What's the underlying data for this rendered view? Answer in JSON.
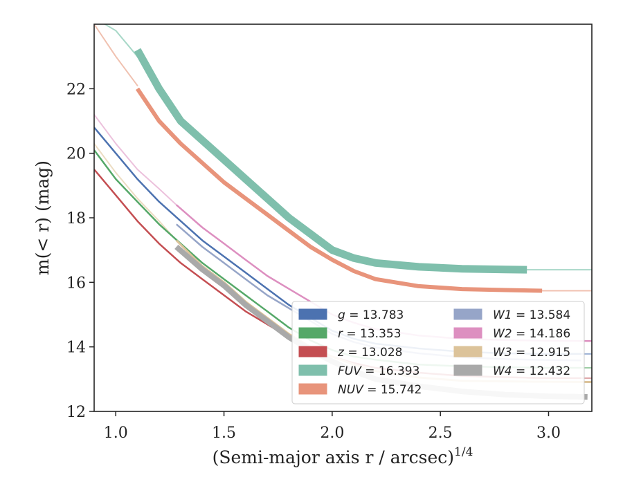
{
  "chart_data": {
    "type": "line",
    "xlabel": "(Semi-major axis r / arcsec)",
    "xlabel_sup": "1/4",
    "ylabel": "m(< r) (mag)",
    "xlim": [
      0.9,
      3.2
    ],
    "ylim": [
      24.0,
      12.0
    ],
    "y_inverted": true,
    "grid": false,
    "legend_placement": "lower-right",
    "xticks": [
      1.0,
      1.5,
      2.0,
      2.5,
      3.0
    ],
    "xtick_labels": [
      "1.0",
      "1.5",
      "2.0",
      "2.5",
      "3.0"
    ],
    "yticks": [
      12,
      14,
      16,
      18,
      20,
      22
    ],
    "ytick_labels": [
      "12",
      "14",
      "16",
      "18",
      "20",
      "22"
    ],
    "series": [
      {
        "name": "g = 13.783",
        "label_var": "g",
        "label_val": "= 13.783",
        "color": "#4c72b0",
        "width": 2.5,
        "x": [
          0.9,
          1.0,
          1.1,
          1.2,
          1.3,
          1.4,
          1.5,
          1.6,
          1.7,
          1.8,
          1.9,
          2.0,
          2.1,
          2.2,
          2.4,
          2.6,
          2.8,
          3.0,
          3.15
        ],
        "y": [
          20.8,
          20.0,
          19.2,
          18.5,
          17.9,
          17.3,
          16.8,
          16.3,
          15.8,
          15.3,
          14.9,
          14.5,
          14.25,
          14.1,
          13.95,
          13.85,
          13.8,
          13.78,
          13.78
        ]
      },
      {
        "name": "r = 13.353",
        "label_var": "r",
        "label_val": "= 13.353",
        "color": "#55a868",
        "width": 2.5,
        "x": [
          0.9,
          1.0,
          1.1,
          1.2,
          1.3,
          1.4,
          1.5,
          1.6,
          1.7,
          1.8,
          1.9,
          2.0,
          2.1,
          2.2,
          2.4,
          2.6,
          2.8,
          3.0,
          3.15
        ],
        "y": [
          20.1,
          19.2,
          18.5,
          17.8,
          17.2,
          16.6,
          16.1,
          15.6,
          15.1,
          14.6,
          14.2,
          13.9,
          13.7,
          13.6,
          13.45,
          13.4,
          13.37,
          13.35,
          13.35
        ]
      },
      {
        "name": "z = 13.028",
        "label_var": "z",
        "label_val": "= 13.028",
        "color": "#c44e52",
        "width": 2.5,
        "x": [
          0.9,
          1.0,
          1.1,
          1.2,
          1.3,
          1.4,
          1.5,
          1.6,
          1.7,
          1.8,
          1.9,
          2.0,
          2.1,
          2.2,
          2.4,
          2.6,
          2.8,
          3.0,
          3.15
        ],
        "y": [
          19.5,
          18.7,
          17.9,
          17.2,
          16.6,
          16.1,
          15.6,
          15.1,
          14.7,
          14.3,
          14.0,
          13.7,
          13.5,
          13.35,
          13.2,
          13.1,
          13.06,
          13.03,
          13.03
        ]
      },
      {
        "name": "FUV = 16.393",
        "label_var": "FUV",
        "label_val": "= 16.393",
        "color": "#7fbfac",
        "width": 11,
        "x": [
          1.1,
          1.2,
          1.3,
          1.4,
          1.5,
          1.6,
          1.7,
          1.8,
          1.9,
          2.0,
          2.1,
          2.2,
          2.4,
          2.6,
          2.8,
          2.9
        ],
        "y": [
          23.2,
          22.0,
          21.0,
          20.4,
          19.8,
          19.2,
          18.6,
          18.0,
          17.5,
          17.0,
          16.75,
          16.6,
          16.48,
          16.42,
          16.4,
          16.39
        ]
      },
      {
        "name": "NUV = 15.742",
        "label_var": "NUV",
        "label_val": "= 15.742",
        "color": "#e8947b",
        "width": 6,
        "x": [
          1.1,
          1.2,
          1.3,
          1.4,
          1.5,
          1.6,
          1.7,
          1.8,
          1.9,
          2.0,
          2.1,
          2.2,
          2.4,
          2.6,
          2.8,
          2.97
        ],
        "y": [
          22.0,
          21.0,
          20.3,
          19.7,
          19.1,
          18.6,
          18.1,
          17.6,
          17.1,
          16.7,
          16.35,
          16.1,
          15.88,
          15.79,
          15.76,
          15.74
        ]
      },
      {
        "name": "W1 = 13.584",
        "label_var": "W1",
        "label_val": "= 13.584",
        "color": "#96a5c8",
        "width": 2.5,
        "x": [
          1.28,
          1.4,
          1.5,
          1.6,
          1.7,
          1.8,
          1.9,
          2.0,
          2.1,
          2.2,
          2.4,
          2.6,
          2.8,
          3.0,
          3.15
        ],
        "y": [
          17.8,
          17.1,
          16.6,
          16.1,
          15.6,
          15.2,
          14.8,
          14.4,
          14.15,
          13.98,
          13.8,
          13.68,
          13.62,
          13.59,
          13.58
        ]
      },
      {
        "name": "W2 = 14.186",
        "label_var": "W2",
        "label_val": "= 14.186",
        "color": "#dd8fc0",
        "width": 2.5,
        "x": [
          1.28,
          1.4,
          1.5,
          1.6,
          1.7,
          1.8,
          1.9,
          2.0,
          2.1,
          2.2,
          2.4,
          2.6,
          2.8,
          3.0,
          3.2
        ],
        "y": [
          18.4,
          17.7,
          17.2,
          16.7,
          16.2,
          15.8,
          15.4,
          15.0,
          14.75,
          14.55,
          14.35,
          14.25,
          14.21,
          14.19,
          14.18
        ]
      },
      {
        "name": "W3 = 12.915",
        "label_var": "W3",
        "label_val": "= 12.915",
        "color": "#dcc39a",
        "width": 3,
        "x": [
          1.28,
          1.4,
          1.5,
          1.6,
          1.7,
          1.8,
          1.9,
          2.0,
          2.1,
          2.2,
          2.4,
          2.6,
          2.8,
          3.0,
          3.2
        ],
        "y": [
          17.3,
          16.5,
          16.0,
          15.4,
          14.9,
          14.4,
          14.0,
          13.7,
          13.45,
          13.25,
          13.05,
          12.95,
          12.93,
          12.92,
          12.91
        ]
      },
      {
        "name": "W4 = 12.432",
        "label_var": "W4",
        "label_val": "= 12.432",
        "color": "#a9a9a9",
        "width": 8,
        "x": [
          1.28,
          1.4,
          1.5,
          1.6,
          1.7,
          1.8,
          1.9,
          2.0,
          2.1,
          2.2,
          2.4,
          2.6,
          2.8,
          3.0,
          3.18
        ],
        "y": [
          17.1,
          16.4,
          15.9,
          15.3,
          14.8,
          14.3,
          13.9,
          13.55,
          13.25,
          13.0,
          12.78,
          12.62,
          12.52,
          12.47,
          12.45
        ]
      }
    ],
    "thin_extensions": [
      {
        "series": "g = 13.783",
        "color": "#9cb1d4",
        "x": [
          2.9,
          3.2
        ],
        "y": [
          13.78,
          13.78
        ]
      },
      {
        "series": "r = 13.353",
        "color": "#9ccda4",
        "x": [
          2.9,
          3.2
        ],
        "y": [
          13.35,
          13.35
        ]
      },
      {
        "series": "z = 13.028",
        "color": "#dca0a2",
        "x": [
          2.9,
          3.2
        ],
        "y": [
          13.03,
          13.03
        ]
      },
      {
        "series": "FUV = 16.393",
        "color": "#a8d8c8",
        "x": [
          0.95,
          1.0,
          1.1,
          1.2,
          1.3
        ],
        "y": [
          24.0,
          23.8,
          23.0,
          22.0,
          21.0
        ]
      },
      {
        "series": "FUV = 16.393",
        "color": "#a8d8c8",
        "x": [
          2.9,
          3.2
        ],
        "y": [
          16.39,
          16.39
        ]
      },
      {
        "series": "NUV = 15.742",
        "color": "#f0c1b0",
        "x": [
          0.9,
          1.0,
          1.1
        ],
        "y": [
          24.0,
          23.0,
          22.1
        ]
      },
      {
        "series": "NUV = 15.742",
        "color": "#f0c1b0",
        "x": [
          2.97,
          3.2
        ],
        "y": [
          15.74,
          15.74
        ]
      },
      {
        "series": "W2 = 14.186",
        "color": "#ecc1dc",
        "x": [
          0.9,
          1.0,
          1.1,
          1.2,
          1.28
        ],
        "y": [
          21.2,
          20.3,
          19.5,
          18.9,
          18.4
        ]
      },
      {
        "series": "W3 = 12.915",
        "color": "#ecdcc2",
        "x": [
          0.9,
          1.0,
          1.1,
          1.2,
          1.28
        ],
        "y": [
          20.3,
          19.4,
          18.6,
          17.9,
          17.3
        ]
      },
      {
        "series": "W3 = 12.915",
        "color": "#ecdcc2",
        "x": [
          3.0,
          3.2
        ],
        "y": [
          12.92,
          12.92
        ]
      }
    ]
  }
}
